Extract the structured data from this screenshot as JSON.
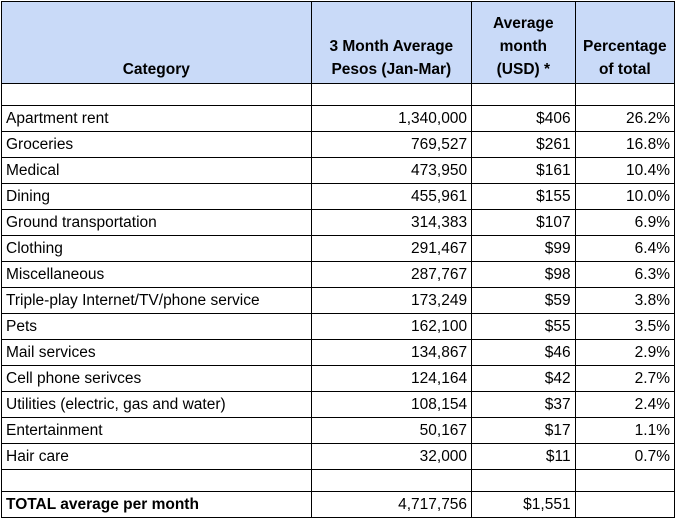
{
  "header": {
    "category": "Category",
    "pesos_line1": "3 Month Average",
    "pesos_line2": "Pesos (Jan-Mar)",
    "usd_line1": "Average",
    "usd_line2": "month",
    "usd_line3": "(USD) *",
    "pct_line1": "Percentage",
    "pct_line2": "of total"
  },
  "rows": [
    {
      "category": "Apartment rent",
      "pesos": "1,340,000",
      "usd": "$406",
      "pct": "26.2%"
    },
    {
      "category": "Groceries",
      "pesos": "769,527",
      "usd": "$261",
      "pct": "16.8%"
    },
    {
      "category": "Medical",
      "pesos": "473,950",
      "usd": "$161",
      "pct": "10.4%"
    },
    {
      "category": "Dining",
      "pesos": "455,961",
      "usd": "$155",
      "pct": "10.0%"
    },
    {
      "category": "Ground transportation",
      "pesos": "314,383",
      "usd": "$107",
      "pct": "6.9%"
    },
    {
      "category": "Clothing",
      "pesos": "291,467",
      "usd": "$99",
      "pct": "6.4%"
    },
    {
      "category": "Miscellaneous",
      "pesos": "287,767",
      "usd": "$98",
      "pct": "6.3%"
    },
    {
      "category": "Triple-play Internet/TV/phone service",
      "pesos": "173,249",
      "usd": "$59",
      "pct": "3.8%"
    },
    {
      "category": "Pets",
      "pesos": "162,100",
      "usd": "$55",
      "pct": "3.5%"
    },
    {
      "category": "Mail services",
      "pesos": "134,867",
      "usd": "$46",
      "pct": "2.9%"
    },
    {
      "category": "Cell phone serivces",
      "pesos": "124,164",
      "usd": "$42",
      "pct": "2.7%"
    },
    {
      "category": "Utilities (electric, gas and water)",
      "pesos": "108,154",
      "usd": "$37",
      "pct": "2.4%"
    },
    {
      "category": "Entertainment",
      "pesos": "50,167",
      "usd": "$17",
      "pct": "1.1%"
    },
    {
      "category": "Hair care",
      "pesos": "32,000",
      "usd": "$11",
      "pct": "0.7%"
    }
  ],
  "total": {
    "label": "TOTAL average per month",
    "pesos": "4,717,756",
    "usd": "$1,551",
    "pct": ""
  },
  "colors": {
    "header_bg": "#c9daf8",
    "border": "#000000"
  }
}
